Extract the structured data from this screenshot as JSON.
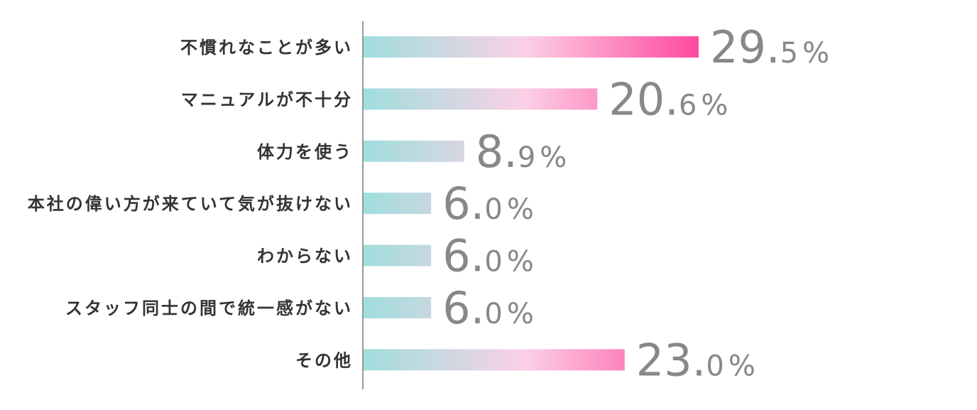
{
  "chart_data": {
    "type": "bar",
    "orientation": "horizontal",
    "categories": [
      "不慣れなことが多い",
      "マニュアルが不十分",
      "体力を使う",
      "本社の偉い方が来ていて気が抜けない",
      "わからない",
      "スタッフ同士の間で統一感がない",
      "その他"
    ],
    "values": [
      29.5,
      20.6,
      8.9,
      6.0,
      6.0,
      6.0,
      23.0
    ],
    "value_labels": [
      {
        "int": "29.",
        "dec": "5",
        "unit": "%"
      },
      {
        "int": "20.",
        "dec": "6",
        "unit": "%"
      },
      {
        "int": "8.",
        "dec": "9",
        "unit": "%"
      },
      {
        "int": "6.",
        "dec": "0",
        "unit": "%"
      },
      {
        "int": "6.",
        "dec": "0",
        "unit": "%"
      },
      {
        "int": "6.",
        "dec": "0",
        "unit": "%"
      },
      {
        "int": "23.",
        "dec": "0",
        "unit": "%"
      }
    ],
    "title": "",
    "xlabel": "",
    "ylabel": "",
    "xlim": [
      0,
      29.5
    ],
    "grid": false,
    "legend": "none",
    "colors": {
      "gradient_start": "#9fdedd",
      "gradient_mid": "#fbd0e6",
      "gradient_end": "#fd4a9e",
      "axis": "#999999",
      "label_text": "#333333",
      "value_text": "#888888"
    }
  }
}
